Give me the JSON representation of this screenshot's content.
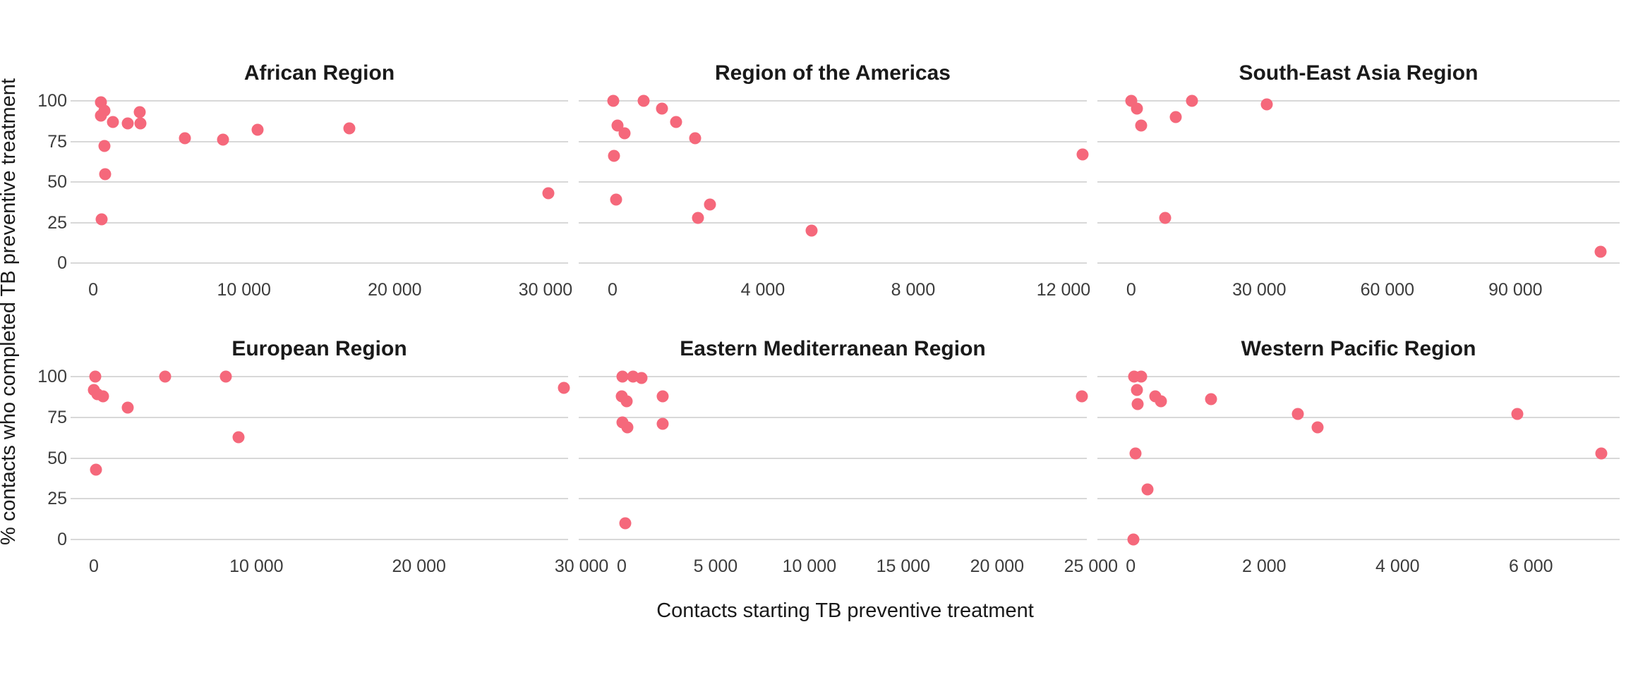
{
  "figure": {
    "x_axis_title": "Contacts starting TB preventive treatment",
    "y_axis_title": "% contacts who completed TB preventive treatment",
    "dot_color": "#F5687B",
    "grid_color": "#D8D8D8",
    "title_color": "#1A1A1A",
    "tick_color": "#3C3C3C",
    "background_color": "#FFFFFF",
    "ylim": [
      -5.5,
      106.5
    ],
    "yticks": [
      {
        "v": 100,
        "label": "100"
      },
      {
        "v": 75,
        "label": "75"
      },
      {
        "v": 50,
        "label": "50"
      },
      {
        "v": 25,
        "label": "25"
      },
      {
        "v": 0,
        "label": "0"
      }
    ]
  },
  "chart_data": [
    {
      "type": "scatter",
      "title": "African Region",
      "row": 0,
      "col": 0,
      "xlim": [
        -1500,
        31500
      ],
      "xticks": [
        {
          "v": 0,
          "label": "0"
        },
        {
          "v": 10000,
          "label": "10 000"
        },
        {
          "v": 20000,
          "label": "20 000"
        },
        {
          "v": 30000,
          "label": "30 000"
        }
      ],
      "points": [
        [
          500,
          99
        ],
        [
          750,
          94
        ],
        [
          500,
          91
        ],
        [
          1300,
          87
        ],
        [
          2300,
          86
        ],
        [
          3100,
          93
        ],
        [
          3150,
          86
        ],
        [
          750,
          72
        ],
        [
          800,
          55
        ],
        [
          550,
          27
        ],
        [
          6100,
          77
        ],
        [
          8600,
          76
        ],
        [
          10900,
          82
        ],
        [
          17000,
          83
        ],
        [
          30200,
          43
        ]
      ]
    },
    {
      "type": "scatter",
      "title": "Region of the Americas",
      "row": 0,
      "col": 1,
      "xlim": [
        -900,
        12620
      ],
      "xticks": [
        {
          "v": 0,
          "label": "0"
        },
        {
          "v": 4000,
          "label": "4 000"
        },
        {
          "v": 8000,
          "label": "8 000"
        },
        {
          "v": 12000,
          "label": "12 000"
        }
      ],
      "points": [
        [
          20,
          100
        ],
        [
          830,
          100
        ],
        [
          1310,
          95
        ],
        [
          1700,
          87
        ],
        [
          2200,
          77
        ],
        [
          130,
          85
        ],
        [
          320,
          80
        ],
        [
          40,
          66
        ],
        [
          95,
          39
        ],
        [
          2600,
          36
        ],
        [
          2270,
          28
        ],
        [
          5300,
          20
        ],
        [
          12500,
          67
        ]
      ]
    },
    {
      "type": "scatter",
      "title": "South-East Asia Region",
      "row": 0,
      "col": 2,
      "xlim": [
        -7900,
        114400
      ],
      "xticks": [
        {
          "v": 0,
          "label": "0"
        },
        {
          "v": 30000,
          "label": "30 000"
        },
        {
          "v": 60000,
          "label": "60 000"
        },
        {
          "v": 90000,
          "label": "90 000"
        }
      ],
      "points": [
        [
          0,
          100
        ],
        [
          1300,
          95
        ],
        [
          2300,
          85
        ],
        [
          10400,
          90
        ],
        [
          14200,
          100
        ],
        [
          31700,
          98
        ],
        [
          7900,
          28
        ],
        [
          110000,
          7
        ]
      ]
    },
    {
      "type": "scatter",
      "title": "European Region",
      "row": 1,
      "col": 0,
      "xlim": [
        -1430,
        29170
      ],
      "xticks": [
        {
          "v": 0,
          "label": "0"
        },
        {
          "v": 10000,
          "label": "10 000"
        },
        {
          "v": 20000,
          "label": "20 000"
        },
        {
          "v": 30000,
          "label": "30 000"
        }
      ],
      "points": [
        [
          90,
          100
        ],
        [
          0,
          92
        ],
        [
          215,
          89
        ],
        [
          560,
          88
        ],
        [
          2100,
          81
        ],
        [
          4400,
          100
        ],
        [
          8100,
          100
        ],
        [
          8900,
          63
        ],
        [
          130,
          43
        ],
        [
          28900,
          93
        ]
      ]
    },
    {
      "type": "scatter",
      "title": "Eastern Mediterranean Region",
      "row": 1,
      "col": 1,
      "xlim": [
        -2290,
        24780
      ],
      "xticks": [
        {
          "v": 0,
          "label": "0"
        },
        {
          "v": 5000,
          "label": "5 000"
        },
        {
          "v": 10000,
          "label": "10 000"
        },
        {
          "v": 15000,
          "label": "15 000"
        },
        {
          "v": 20000,
          "label": "20 000"
        },
        {
          "v": 25000,
          "label": "25 000"
        }
      ],
      "points": [
        [
          50,
          100
        ],
        [
          600,
          100
        ],
        [
          1050,
          99
        ],
        [
          0,
          88
        ],
        [
          250,
          85
        ],
        [
          2200,
          88
        ],
        [
          50,
          72
        ],
        [
          300,
          69
        ],
        [
          2200,
          71
        ],
        [
          200,
          10
        ],
        [
          24500,
          88
        ]
      ]
    },
    {
      "type": "scatter",
      "title": "Western Pacific Region",
      "row": 1,
      "col": 2,
      "xlim": [
        -500,
        7330
      ],
      "xticks": [
        {
          "v": 0,
          "label": "0"
        },
        {
          "v": 2000,
          "label": "2 000"
        },
        {
          "v": 4000,
          "label": "4 000"
        },
        {
          "v": 6000,
          "label": "6 000"
        }
      ],
      "points": [
        [
          50,
          100
        ],
        [
          160,
          100
        ],
        [
          95,
          92
        ],
        [
          105,
          83
        ],
        [
          370,
          88
        ],
        [
          455,
          85
        ],
        [
          1200,
          86
        ],
        [
          2500,
          77
        ],
        [
          2800,
          69
        ],
        [
          75,
          53
        ],
        [
          255,
          31
        ],
        [
          40,
          0
        ],
        [
          5800,
          77
        ],
        [
          7050,
          53
        ]
      ]
    }
  ]
}
